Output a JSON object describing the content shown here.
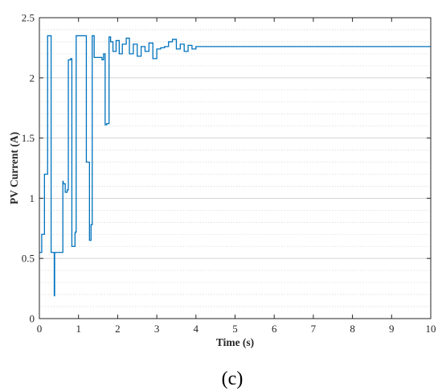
{
  "figure": {
    "panel_label": "(c)"
  },
  "chart_data": {
    "type": "line",
    "title": "",
    "xlabel": "Time (s)",
    "ylabel": "PV Current (A)",
    "xlim": [
      0,
      10
    ],
    "ylim": [
      0,
      2.5
    ],
    "xticks": [
      0,
      1,
      2,
      3,
      4,
      5,
      6,
      7,
      8,
      9,
      10
    ],
    "yticks": [
      0,
      0.5,
      1,
      1.5,
      2,
      2.5
    ],
    "ytick_labels": [
      "0",
      "0.5",
      "1",
      "1.5",
      "2",
      "2.5"
    ],
    "grid": {
      "y_major": true,
      "y_minor": true,
      "x": false
    },
    "line_color": "#0072BD",
    "grid_color": "#D9D9D9",
    "series": [
      {
        "x": [
          0,
          0.06,
          0.06,
          0.13,
          0.13,
          0.21,
          0.21,
          0.3,
          0.3,
          0.38,
          0.38,
          0.39,
          0.39,
          0.41,
          0.41,
          0.43,
          0.43,
          0.6,
          0.6,
          0.61,
          0.61,
          0.66,
          0.66,
          0.71,
          0.71,
          0.74,
          0.74,
          0.8,
          0.8,
          0.83,
          0.83,
          0.91,
          0.91,
          0.92,
          0.92,
          0.94,
          0.94,
          1.0,
          1.0,
          1.02,
          1.02,
          1.2,
          1.2,
          1.28,
          1.28,
          1.32,
          1.32,
          1.35,
          1.35,
          1.38,
          1.38,
          1.4,
          1.4,
          1.6,
          1.6,
          1.64,
          1.64,
          1.68,
          1.68,
          1.72,
          1.72,
          1.78,
          1.78,
          1.82,
          1.82,
          1.88,
          1.88,
          1.96,
          1.96,
          2.04,
          2.04,
          2.12,
          2.12,
          2.22,
          2.22,
          2.3,
          2.3,
          2.4,
          2.4,
          2.5,
          2.5,
          2.6,
          2.6,
          2.7,
          2.7,
          2.8,
          2.8,
          2.9,
          2.9,
          3.0,
          3.0,
          3.1,
          3.1,
          3.2,
          3.2,
          3.3,
          3.3,
          3.4,
          3.4,
          3.5,
          3.5,
          3.6,
          3.6,
          3.7,
          3.7,
          3.8,
          3.8,
          3.9,
          3.9,
          4.0,
          4.0,
          4.1,
          4.1,
          4.2,
          4.2,
          10
        ],
        "y": [
          0.55,
          0.55,
          0.7,
          0.7,
          1.2,
          1.2,
          2.35,
          2.35,
          0.55,
          0.55,
          0.19,
          0.19,
          0.55,
          0.55,
          0.55,
          0.55,
          0.55,
          0.55,
          1.14,
          1.14,
          1.12,
          1.12,
          1.05,
          1.05,
          1.07,
          1.07,
          2.15,
          2.15,
          2.16,
          2.16,
          0.6,
          0.6,
          0.71,
          0.71,
          0.72,
          0.72,
          2.35,
          2.35,
          2.35,
          2.35,
          2.35,
          2.35,
          1.3,
          1.3,
          0.65,
          0.65,
          0.78,
          0.78,
          2.35,
          2.35,
          2.35,
          2.35,
          2.17,
          2.17,
          2.15,
          2.15,
          2.2,
          2.2,
          1.61,
          1.61,
          1.62,
          1.62,
          2.34,
          2.34,
          2.3,
          2.3,
          2.22,
          2.22,
          2.31,
          2.31,
          2.2,
          2.2,
          2.28,
          2.28,
          2.33,
          2.33,
          2.2,
          2.2,
          2.28,
          2.28,
          2.18,
          2.18,
          2.26,
          2.26,
          2.22,
          2.22,
          2.29,
          2.29,
          2.16,
          2.16,
          2.24,
          2.24,
          2.25,
          2.25,
          2.26,
          2.26,
          2.3,
          2.3,
          2.32,
          2.32,
          2.24,
          2.24,
          2.28,
          2.28,
          2.22,
          2.22,
          2.27,
          2.27,
          2.24,
          2.24,
          2.26,
          2.26,
          2.26,
          2.26,
          2.26,
          2.26
        ]
      }
    ]
  }
}
